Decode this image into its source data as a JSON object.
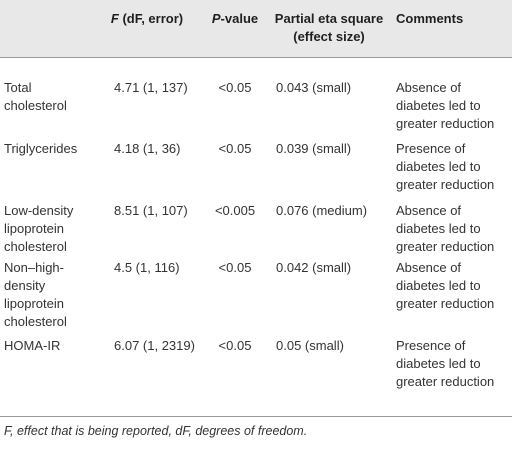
{
  "table": {
    "headers": {
      "variable": "",
      "f_italic": "F",
      "f_rest": " (dF, error)",
      "p_italic": "P",
      "p_rest": "-value",
      "eta": "Partial eta square (effect size)",
      "comments": "Comments"
    },
    "rows": [
      {
        "name": "Total cholesterol",
        "f": "4.71 (1, 137)",
        "p": "<0.05",
        "eta": "0.043 (small)",
        "comment": "Absence of diabetes led to greater reduction"
      },
      {
        "name": "Triglycerides",
        "f": "4.18 (1, 36)",
        "p": "<0.05",
        "eta": "0.039 (small)",
        "comment": "Presence of diabetes led to greater reduction"
      },
      {
        "name": "Low-density lipoprotein cholesterol",
        "f": "8.51 (1, 107)",
        "p": "<0.005",
        "eta": "0.076 (medium)",
        "comment": "Absence of diabetes led to greater reduction"
      },
      {
        "name": "Non–high-density lipoprotein cholesterol",
        "f": "4.5 (1, 116)",
        "p": "<0.05",
        "eta": "0.042 (small)",
        "comment": "Absence of diabetes led to greater reduction"
      },
      {
        "name": "HOMA-IR",
        "f": "6.07 (1, 2319)",
        "p": "<0.05",
        "eta": "0.05 (small)",
        "comment": "Presence of diabetes led to greater reduction"
      }
    ]
  },
  "footnote": "F, effect that is being reported, dF, degrees of freedom."
}
